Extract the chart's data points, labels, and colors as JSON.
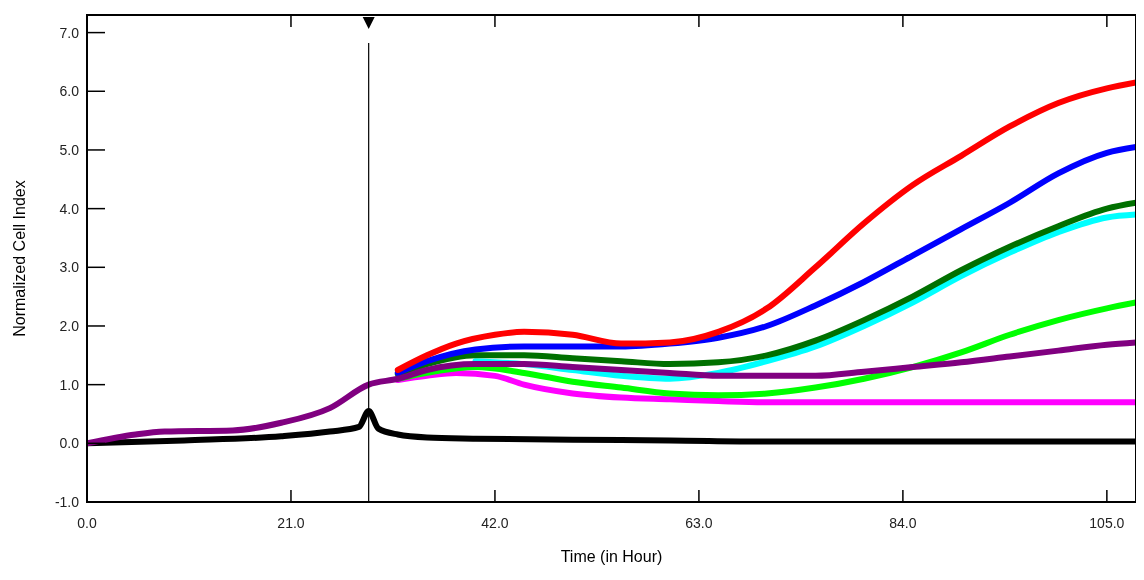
{
  "chart_data": {
    "type": "line",
    "xlabel": "Time (in Hour)",
    "ylabel": "Normalized Cell Index",
    "xlim": [
      0,
      108
    ],
    "ylim": [
      -1,
      7.3
    ],
    "xticks": [
      {
        "value": 0,
        "label": "0.0"
      },
      {
        "value": 21,
        "label": "21.0"
      },
      {
        "value": 42,
        "label": "42.0"
      },
      {
        "value": 63,
        "label": "63.0"
      },
      {
        "value": 84,
        "label": "84.0"
      },
      {
        "value": 105,
        "label": "105.0"
      }
    ],
    "yticks": [
      {
        "value": -1,
        "label": "-1.0"
      },
      {
        "value": 0,
        "label": "0.0"
      },
      {
        "value": 1,
        "label": "1.0"
      },
      {
        "value": 2,
        "label": "2.0"
      },
      {
        "value": 3,
        "label": "3.0"
      },
      {
        "value": 4,
        "label": "4.0"
      },
      {
        "value": 5,
        "label": "5.0"
      },
      {
        "value": 6,
        "label": "6.0"
      },
      {
        "value": 7,
        "label": "7.0"
      }
    ],
    "grid": false,
    "marker": "none",
    "line_style": "solid",
    "ref_lines": [
      {
        "axis": "x",
        "value": 29,
        "color": "#000000"
      }
    ],
    "series": [
      {
        "color": "#000000",
        "x": [
          0,
          10,
          20,
          25,
          28,
          29,
          30,
          32,
          35,
          40,
          50,
          60,
          70,
          108
        ],
        "values": [
          0,
          0.05,
          0.12,
          0.2,
          0.28,
          0.55,
          0.25,
          0.15,
          0.1,
          0.08,
          0.06,
          0.05,
          0.03,
          0.03
        ]
      },
      {
        "color": "#ff00ff",
        "x": [
          32,
          35,
          38,
          42,
          45,
          50,
          55,
          60,
          65,
          70,
          80,
          90,
          100,
          108
        ],
        "values": [
          1.08,
          1.15,
          1.2,
          1.15,
          1.0,
          0.85,
          0.78,
          0.75,
          0.72,
          0.7,
          0.7,
          0.7,
          0.7,
          0.7
        ]
      },
      {
        "color": "#00ff00",
        "x": [
          32,
          35,
          40,
          45,
          50,
          55,
          60,
          65,
          70,
          75,
          80,
          85,
          90,
          95,
          100,
          105,
          108
        ],
        "values": [
          1.1,
          1.2,
          1.3,
          1.2,
          1.05,
          0.95,
          0.85,
          0.82,
          0.85,
          0.95,
          1.1,
          1.3,
          1.55,
          1.85,
          2.1,
          2.3,
          2.4
        ]
      },
      {
        "color": "#00ffff",
        "x": [
          40,
          45,
          50,
          55,
          60,
          65,
          70,
          75,
          80,
          85,
          90,
          95,
          100,
          105,
          108
        ],
        "values": [
          1.4,
          1.35,
          1.25,
          1.15,
          1.1,
          1.2,
          1.4,
          1.65,
          2.0,
          2.4,
          2.85,
          3.25,
          3.6,
          3.85,
          3.9
        ]
      },
      {
        "color": "#007000",
        "x": [
          32,
          35,
          40,
          45,
          50,
          55,
          60,
          65,
          70,
          75,
          80,
          85,
          90,
          95,
          100,
          105,
          108
        ],
        "values": [
          1.18,
          1.35,
          1.5,
          1.5,
          1.45,
          1.4,
          1.35,
          1.38,
          1.5,
          1.75,
          2.1,
          2.5,
          2.95,
          3.35,
          3.7,
          4.0,
          4.1
        ]
      },
      {
        "color": "#0000ff",
        "x": [
          32,
          35,
          40,
          45,
          50,
          55,
          60,
          65,
          70,
          75,
          80,
          85,
          90,
          95,
          100,
          105,
          108
        ],
        "values": [
          1.2,
          1.4,
          1.6,
          1.65,
          1.65,
          1.65,
          1.7,
          1.8,
          2.0,
          2.35,
          2.75,
          3.2,
          3.65,
          4.1,
          4.6,
          4.95,
          5.05
        ]
      },
      {
        "color": "#ff0000",
        "x": [
          32,
          35,
          38,
          42,
          45,
          50,
          55,
          60,
          65,
          70,
          75,
          80,
          85,
          90,
          95,
          100,
          105,
          108
        ],
        "values": [
          1.25,
          1.5,
          1.7,
          1.85,
          1.9,
          1.85,
          1.7,
          1.72,
          1.9,
          2.3,
          3.0,
          3.75,
          4.4,
          4.9,
          5.4,
          5.8,
          6.05,
          6.15
        ]
      },
      {
        "color": "#800080",
        "x": [
          0,
          5,
          8,
          15,
          20,
          25,
          29,
          32,
          35,
          40,
          45,
          50,
          55,
          60,
          65,
          70,
          75,
          80,
          85,
          90,
          95,
          100,
          105,
          108
        ],
        "values": [
          0,
          0.15,
          0.2,
          0.22,
          0.35,
          0.6,
          1.0,
          1.1,
          1.25,
          1.35,
          1.35,
          1.3,
          1.25,
          1.2,
          1.15,
          1.15,
          1.15,
          1.22,
          1.3,
          1.38,
          1.48,
          1.58,
          1.68,
          1.72
        ]
      }
    ]
  }
}
